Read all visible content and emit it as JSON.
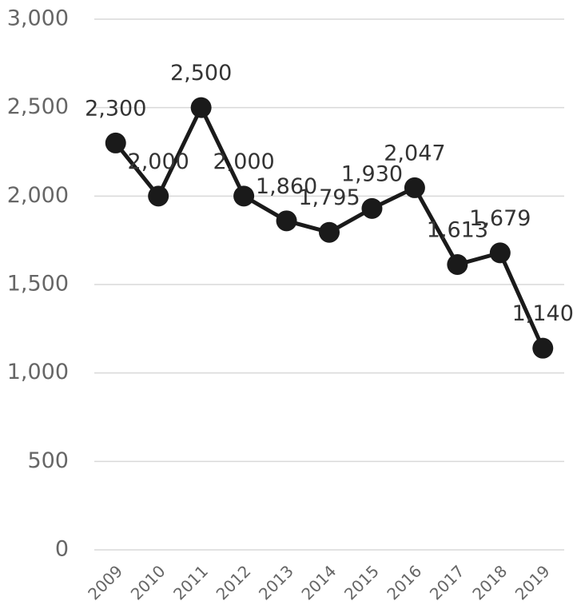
{
  "chart_data": {
    "type": "line",
    "categories": [
      "2009",
      "2010",
      "2011",
      "2012",
      "2013",
      "2014",
      "2015",
      "2016",
      "2017",
      "2018",
      "2019"
    ],
    "series": [
      {
        "color": "#1a1a1a",
        "values": [
          2300,
          2000,
          2500,
          2000,
          1860,
          1795,
          1930,
          2047,
          1613,
          1679,
          1140
        ],
        "value_labels": [
          "2,300",
          "2,000",
          "2,500",
          "2,000",
          "1,860",
          "1,795",
          "1,930",
          "2,047",
          "1,613",
          "1,679",
          "1,140"
        ]
      }
    ],
    "ylim": [
      0,
      3000
    ],
    "yticks": [
      0,
      500,
      {
        "value": 1000,
        "label": "1,000"
      },
      {
        "value": 1500,
        "label": "1,500"
      },
      {
        "value": 2000,
        "label": "2,000"
      },
      {
        "value": 2500,
        "label": "2,500"
      },
      {
        "value": 3000,
        "label": "3,000"
      }
    ],
    "grid": true
  }
}
